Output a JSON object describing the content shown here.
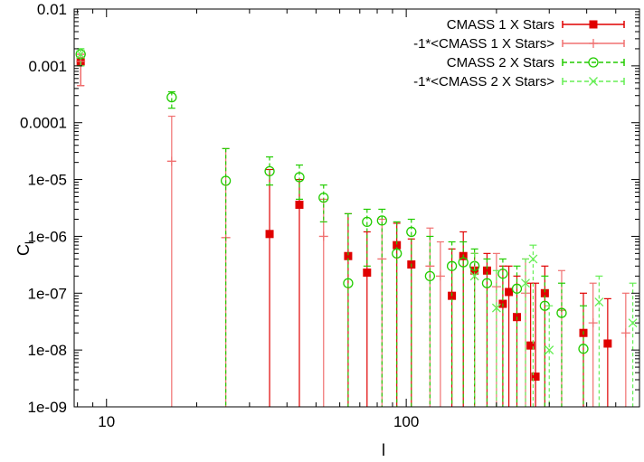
{
  "chart_data": {
    "type": "scatter",
    "title": "",
    "xlabel": "l",
    "ylabel": "C",
    "ylabel_subscript": "l",
    "x_scale": "log",
    "y_scale": "log",
    "xlim": [
      7.8,
      600
    ],
    "ylim": [
      1e-09,
      0.01
    ],
    "grid": false,
    "legend_position": "top-right",
    "x_tick_labels": [
      {
        "value": 10,
        "label": "10"
      },
      {
        "value": 100,
        "label": "100"
      }
    ],
    "y_tick_labels": [
      {
        "value": 0.01,
        "label": "0.01"
      },
      {
        "value": 0.001,
        "label": "0.001"
      },
      {
        "value": 0.0001,
        "label": "0.0001"
      },
      {
        "value": 1e-05,
        "label": "1e-05"
      },
      {
        "value": 1e-06,
        "label": "1e-06"
      },
      {
        "value": 1e-07,
        "label": "1e-07"
      },
      {
        "value": 1e-08,
        "label": "1e-08"
      },
      {
        "value": 1e-09,
        "label": "1e-09"
      }
    ],
    "series": [
      {
        "name": "CMASS 1 X Stars",
        "color": "#e00000",
        "marker": "filled-square",
        "line_style": "solid",
        "points": [
          {
            "x": 8.2,
            "y": 0.0012,
            "lo": 0.00045,
            "hi": 0.0016
          },
          {
            "x": 35,
            "y": 1.1e-06,
            "lo": 1e-09,
            "hi": 1.5e-05
          },
          {
            "x": 44,
            "y": 3.6e-06,
            "lo": 1e-09,
            "hi": 1e-05
          },
          {
            "x": 64,
            "y": 4.5e-07,
            "lo": 1e-09,
            "hi": 2.5e-06
          },
          {
            "x": 74,
            "y": 2.3e-07,
            "lo": 1e-09,
            "hi": 1.2e-06
          },
          {
            "x": 93,
            "y": 7e-07,
            "lo": 1e-09,
            "hi": 1.7e-06
          },
          {
            "x": 104,
            "y": 3.2e-07,
            "lo": 1e-09,
            "hi": 9e-07
          },
          {
            "x": 142,
            "y": 9e-08,
            "lo": 1e-09,
            "hi": 6e-07
          },
          {
            "x": 155,
            "y": 4.5e-07,
            "lo": 1e-09,
            "hi": 1.2e-06
          },
          {
            "x": 169,
            "y": 2.5e-07,
            "lo": 1e-09,
            "hi": 5e-07
          },
          {
            "x": 186,
            "y": 2.5e-07,
            "lo": 1e-09,
            "hi": 5e-07
          },
          {
            "x": 210,
            "y": 6.5e-08,
            "lo": 1e-09,
            "hi": 3e-07
          },
          {
            "x": 220,
            "y": 1.05e-07,
            "lo": 1e-09,
            "hi": 3e-07
          },
          {
            "x": 234,
            "y": 3.8e-08,
            "lo": 1e-09,
            "hi": 2e-07
          },
          {
            "x": 260,
            "y": 1.2e-08,
            "lo": 1e-09,
            "hi": 1.5e-07
          },
          {
            "x": 270,
            "y": 3.4e-09,
            "lo": 1e-09,
            "hi": 1.5e-07
          },
          {
            "x": 290,
            "y": 1e-07,
            "lo": 1e-09,
            "hi": 3e-07
          },
          {
            "x": 390,
            "y": 2e-08,
            "lo": 1e-09,
            "hi": 1e-07
          },
          {
            "x": 470,
            "y": 1.3e-08,
            "lo": 1e-09,
            "hi": 8e-08
          }
        ]
      },
      {
        "name": "-1*<CMASS 1 X Stars>",
        "color": "#f07070",
        "marker": "plus",
        "line_style": "solid",
        "points": [
          {
            "x": 8.2,
            "y": 0.0012,
            "lo": 0.00045,
            "hi": 0.0016
          },
          {
            "x": 16.5,
            "y": 2.1e-05,
            "lo": 1e-09,
            "hi": 0.00013
          },
          {
            "x": 25,
            "y": 9.5e-07,
            "lo": 1e-09,
            "hi": 3.5e-05
          },
          {
            "x": 53,
            "y": 1e-06,
            "lo": 1e-09,
            "hi": 4.5e-06
          },
          {
            "x": 83,
            "y": 4e-07,
            "lo": 1e-09,
            "hi": 2e-06
          },
          {
            "x": 120,
            "y": 3e-07,
            "lo": 1e-09,
            "hi": 1.4e-06
          },
          {
            "x": 130,
            "y": 2e-07,
            "lo": 1e-09,
            "hi": 8e-07
          },
          {
            "x": 200,
            "y": 1.3e-07,
            "lo": 1e-09,
            "hi": 5e-07
          },
          {
            "x": 250,
            "y": 1e-07,
            "lo": 1e-09,
            "hi": 4e-07
          },
          {
            "x": 330,
            "y": 5e-08,
            "lo": 1e-09,
            "hi": 2.5e-07
          },
          {
            "x": 420,
            "y": 3e-08,
            "lo": 1e-09,
            "hi": 1.5e-07
          },
          {
            "x": 540,
            "y": 2e-08,
            "lo": 1e-09,
            "hi": 1e-07
          }
        ]
      },
      {
        "name": "CMASS 2 X Stars",
        "color": "#22cc00",
        "marker": "open-circle",
        "line_style": "dashed",
        "points": [
          {
            "x": 8.2,
            "y": 0.0016,
            "lo": 0.001,
            "hi": 0.002
          },
          {
            "x": 16.5,
            "y": 0.00028,
            "lo": 0.00018,
            "hi": 0.00035
          },
          {
            "x": 25,
            "y": 9.5e-06,
            "lo": 1e-09,
            "hi": 3.5e-05
          },
          {
            "x": 35,
            "y": 1.4e-05,
            "lo": 8e-06,
            "hi": 2.5e-05
          },
          {
            "x": 44,
            "y": 1.1e-05,
            "lo": 4.5e-06,
            "hi": 1.8e-05
          },
          {
            "x": 53,
            "y": 4.8e-06,
            "lo": 1.8e-06,
            "hi": 8e-06
          },
          {
            "x": 64,
            "y": 1.5e-07,
            "lo": 1e-09,
            "hi": 2.5e-06
          },
          {
            "x": 74,
            "y": 1.8e-06,
            "lo": 3e-07,
            "hi": 3e-06
          },
          {
            "x": 83,
            "y": 1.9e-06,
            "lo": 1e-09,
            "hi": 3e-06
          },
          {
            "x": 93,
            "y": 5e-07,
            "lo": 1e-09,
            "hi": 1.8e-06
          },
          {
            "x": 104,
            "y": 1.2e-06,
            "lo": 1e-09,
            "hi": 2e-06
          },
          {
            "x": 120,
            "y": 2e-07,
            "lo": 1e-09,
            "hi": 1e-06
          },
          {
            "x": 142,
            "y": 3e-07,
            "lo": 1e-09,
            "hi": 8e-07
          },
          {
            "x": 155,
            "y": 3.5e-07,
            "lo": 1e-09,
            "hi": 8e-07
          },
          {
            "x": 169,
            "y": 3e-07,
            "lo": 1e-09,
            "hi": 6e-07
          },
          {
            "x": 186,
            "y": 1.5e-07,
            "lo": 1e-09,
            "hi": 4e-07
          },
          {
            "x": 210,
            "y": 2.2e-07,
            "lo": 1e-09,
            "hi": 4e-07
          },
          {
            "x": 234,
            "y": 1.2e-07,
            "lo": 1e-09,
            "hi": 3e-07
          },
          {
            "x": 290,
            "y": 6e-08,
            "lo": 1e-09,
            "hi": 2e-07
          },
          {
            "x": 330,
            "y": 4.5e-08,
            "lo": 1e-09,
            "hi": 1.5e-07
          },
          {
            "x": 390,
            "y": 1.05e-08,
            "lo": 1e-09,
            "hi": 6e-08
          }
        ]
      },
      {
        "name": "-1*<CMASS 2 X Stars>",
        "color": "#66ee55",
        "marker": "cross",
        "line_style": "dashed",
        "points": [
          {
            "x": 8.2,
            "y": 0.0016,
            "lo": 0.001,
            "hi": 0.002
          },
          {
            "x": 169,
            "y": 2e-07,
            "lo": 1e-09,
            "hi": 5e-07
          },
          {
            "x": 200,
            "y": 5.5e-08,
            "lo": 1e-09,
            "hi": 2.5e-07
          },
          {
            "x": 250,
            "y": 1.5e-07,
            "lo": 1e-09,
            "hi": 4e-07
          },
          {
            "x": 265,
            "y": 4e-07,
            "lo": 1e-09,
            "hi": 7e-07
          },
          {
            "x": 300,
            "y": 1e-08,
            "lo": 1e-09,
            "hi": 6e-08
          },
          {
            "x": 440,
            "y": 7e-08,
            "lo": 1e-09,
            "hi": 2e-07
          },
          {
            "x": 570,
            "y": 3e-08,
            "lo": 1e-09,
            "hi": 1.5e-07
          }
        ]
      }
    ]
  }
}
